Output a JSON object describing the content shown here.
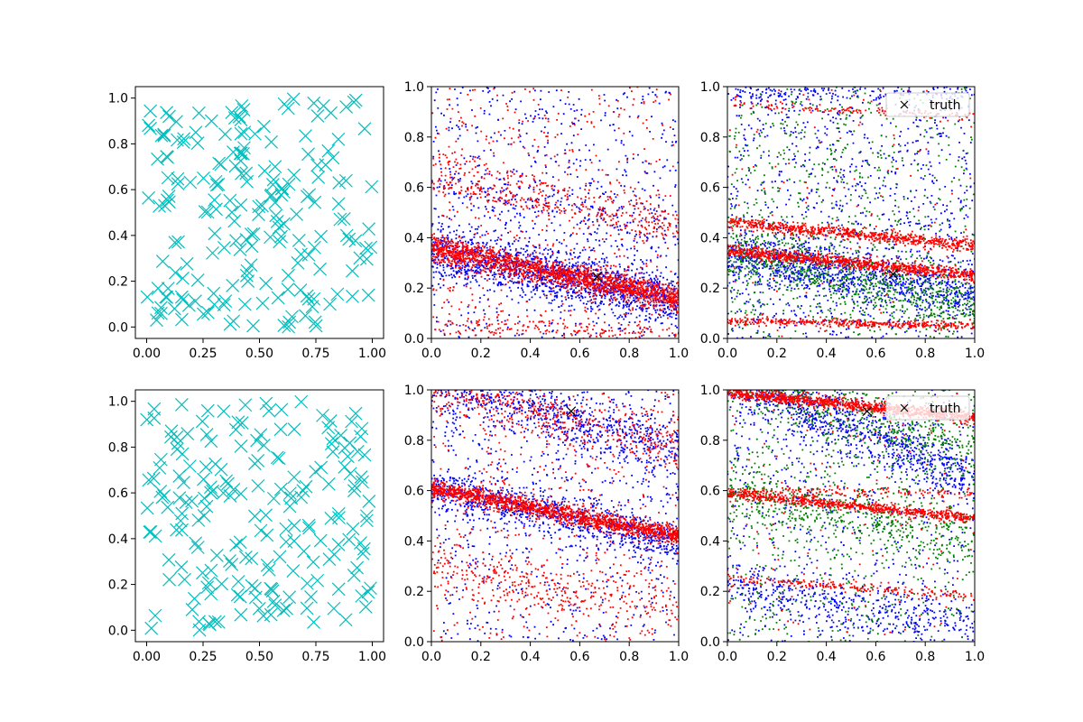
{
  "chart_data": [
    {
      "panel": "top-left",
      "type": "scatter",
      "xlim": [
        -0.05,
        1.05
      ],
      "ylim": [
        -0.05,
        1.05
      ],
      "xticks": [
        0.0,
        0.25,
        0.5,
        0.75,
        1.0
      ],
      "xtick_labels": [
        "0.00",
        "0.25",
        "0.50",
        "0.75",
        "1.00"
      ],
      "yticks": [
        0.0,
        0.2,
        0.4,
        0.6,
        0.8,
        1.0
      ],
      "ytick_labels": [
        "0.0",
        "0.2",
        "0.4",
        "0.6",
        "0.8",
        "1.0"
      ],
      "grid": false,
      "series": [
        {
          "marker": "x-large",
          "color": "#00bfbf",
          "random_uniform": {
            "count": 200,
            "seed": 11
          }
        }
      ]
    },
    {
      "panel": "top-middle",
      "type": "scatter",
      "xlim": [
        0,
        1
      ],
      "ylim": [
        0,
        1
      ],
      "xticks": [
        0.0,
        0.2,
        0.4,
        0.6,
        0.8,
        1.0
      ],
      "xtick_labels": [
        "0.0",
        "0.2",
        "0.4",
        "0.6",
        "0.8",
        "1.0"
      ],
      "yticks": [
        0.0,
        0.2,
        0.4,
        0.6,
        0.8,
        1.0
      ],
      "ytick_labels": [
        "0.0",
        "0.2",
        "0.4",
        "0.6",
        "0.8",
        "1.0"
      ],
      "grid": false,
      "series": [
        {
          "marker": "dot",
          "color": "#0000ff",
          "seed": 21,
          "bands": [
            [
              0.35,
              0.15,
              0.05,
              1400
            ],
            [
              0.62,
              0.42,
              0.06,
              200
            ]
          ],
          "noise_count": 700
        },
        {
          "marker": "dot",
          "color": "#ff0000",
          "seed": 22,
          "bands": [
            [
              0.36,
              0.16,
              0.025,
              1700
            ],
            [
              0.62,
              0.42,
              0.02,
              220
            ],
            [
              0.72,
              0.48,
              0.02,
              120
            ],
            [
              0.05,
              0.02,
              0.02,
              160
            ]
          ],
          "noise_count": 500
        },
        {
          "marker": "x-black",
          "color": "#000000",
          "x": [
            0.67
          ],
          "y": [
            0.245
          ]
        }
      ]
    },
    {
      "panel": "top-right",
      "type": "scatter",
      "xlim": [
        0,
        1
      ],
      "ylim": [
        0,
        1
      ],
      "xticks": [
        0.0,
        0.2,
        0.4,
        0.6,
        0.8,
        1.0
      ],
      "xtick_labels": [
        "0.0",
        "0.2",
        "0.4",
        "0.6",
        "0.8",
        "1.0"
      ],
      "yticks": [
        0.0,
        0.2,
        0.4,
        0.6,
        0.8,
        1.0
      ],
      "ytick_labels": [
        "0.0",
        "0.2",
        "0.4",
        "0.6",
        "0.8",
        "1.0"
      ],
      "grid": false,
      "legend": {
        "label": "truth",
        "location": "top-right"
      },
      "series": [
        {
          "marker": "dot",
          "color": "#0000ff",
          "seed": 31,
          "bands": [
            [
              0.33,
              0.18,
              0.05,
              900
            ],
            [
              0.98,
              0.98,
              0.02,
              150
            ]
          ],
          "noise_count": 1000
        },
        {
          "marker": "dot",
          "color": "#008000",
          "seed": 32,
          "bands": [
            [
              0.34,
              0.12,
              0.06,
              700
            ]
          ],
          "noise_count": 700
        },
        {
          "marker": "dot",
          "color": "#ff0000",
          "seed": 33,
          "bands": [
            [
              0.35,
              0.25,
              0.012,
              900
            ],
            [
              0.46,
              0.37,
              0.012,
              700
            ],
            [
              0.07,
              0.05,
              0.008,
              400
            ],
            [
              0.93,
              0.88,
              0.008,
              120
            ]
          ],
          "noise_count": 120
        },
        {
          "marker": "x-black",
          "color": "#000000",
          "x": [
            0.67
          ],
          "y": [
            0.255
          ]
        }
      ]
    },
    {
      "panel": "bottom-left",
      "type": "scatter",
      "xlim": [
        -0.05,
        1.05
      ],
      "ylim": [
        -0.05,
        1.05
      ],
      "xticks": [
        0.0,
        0.25,
        0.5,
        0.75,
        1.0
      ],
      "xtick_labels": [
        "0.00",
        "0.25",
        "0.50",
        "0.75",
        "1.00"
      ],
      "yticks": [
        0.0,
        0.2,
        0.4,
        0.6,
        0.8,
        1.0
      ],
      "ytick_labels": [
        "0.0",
        "0.2",
        "0.4",
        "0.6",
        "0.8",
        "1.0"
      ],
      "grid": false,
      "series": [
        {
          "marker": "x-large",
          "color": "#00bfbf",
          "random_uniform": {
            "count": 200,
            "seed": 41
          }
        }
      ]
    },
    {
      "panel": "bottom-middle",
      "type": "scatter",
      "xlim": [
        0,
        1
      ],
      "ylim": [
        0,
        1
      ],
      "xticks": [
        0.0,
        0.2,
        0.4,
        0.6,
        0.8,
        1.0
      ],
      "xtick_labels": [
        "0.0",
        "0.2",
        "0.4",
        "0.6",
        "0.8",
        "1.0"
      ],
      "yticks": [
        0.0,
        0.2,
        0.4,
        0.6,
        0.8,
        1.0
      ],
      "ytick_labels": [
        "0.0",
        "0.2",
        "0.4",
        "0.6",
        "0.8",
        "1.0"
      ],
      "grid": false,
      "series": [
        {
          "marker": "dot",
          "color": "#0000ff",
          "seed": 51,
          "bands": [
            [
              0.61,
              0.4,
              0.04,
              900
            ],
            [
              1.03,
              0.75,
              0.06,
              700
            ]
          ],
          "noise_count": 700
        },
        {
          "marker": "dot",
          "color": "#ff0000",
          "seed": 52,
          "bands": [
            [
              0.61,
              0.42,
              0.018,
              1400
            ],
            [
              1.02,
              0.76,
              0.05,
              400
            ],
            [
              0.3,
              0.12,
              0.05,
              300
            ]
          ],
          "noise_count": 500
        },
        {
          "marker": "x-black",
          "color": "#000000",
          "x": [
            0.565
          ],
          "y": [
            0.915
          ]
        }
      ]
    },
    {
      "panel": "bottom-right",
      "type": "scatter",
      "xlim": [
        0,
        1
      ],
      "ylim": [
        0,
        1
      ],
      "xticks": [
        0.0,
        0.2,
        0.4,
        0.6,
        0.8,
        1.0
      ],
      "xtick_labels": [
        "0.0",
        "0.2",
        "0.4",
        "0.6",
        "0.8",
        "1.0"
      ],
      "yticks": [
        0.0,
        0.2,
        0.4,
        0.6,
        0.8,
        1.0
      ],
      "ytick_labels": [
        "0.0",
        "0.2",
        "0.4",
        "0.6",
        "0.8",
        "1.0"
      ],
      "grid": false,
      "legend": {
        "label": "truth",
        "location": "top-right"
      },
      "series": [
        {
          "marker": "dot",
          "color": "#0000ff",
          "seed": 61,
          "bands": [
            [
              1.05,
              0.65,
              0.06,
              900
            ],
            [
              0.22,
              0.06,
              0.05,
              400
            ]
          ],
          "noise_count": 600
        },
        {
          "marker": "dot",
          "color": "#008000",
          "seed": 62,
          "bands": [
            [
              1.05,
              0.75,
              0.06,
              500
            ],
            [
              0.6,
              0.4,
              0.06,
              500
            ]
          ],
          "noise_count": 600
        },
        {
          "marker": "dot",
          "color": "#ff0000",
          "seed": 63,
          "bands": [
            [
              0.99,
              0.89,
              0.012,
              1000
            ],
            [
              0.59,
              0.49,
              0.01,
              700
            ],
            [
              0.25,
              0.18,
              0.01,
              200
            ],
            [
              0.6,
              0.59,
              0.01,
              150
            ]
          ],
          "noise_count": 150
        },
        {
          "marker": "x-black",
          "color": "#000000",
          "x": [
            0.565
          ],
          "y": [
            0.915
          ]
        }
      ]
    }
  ]
}
